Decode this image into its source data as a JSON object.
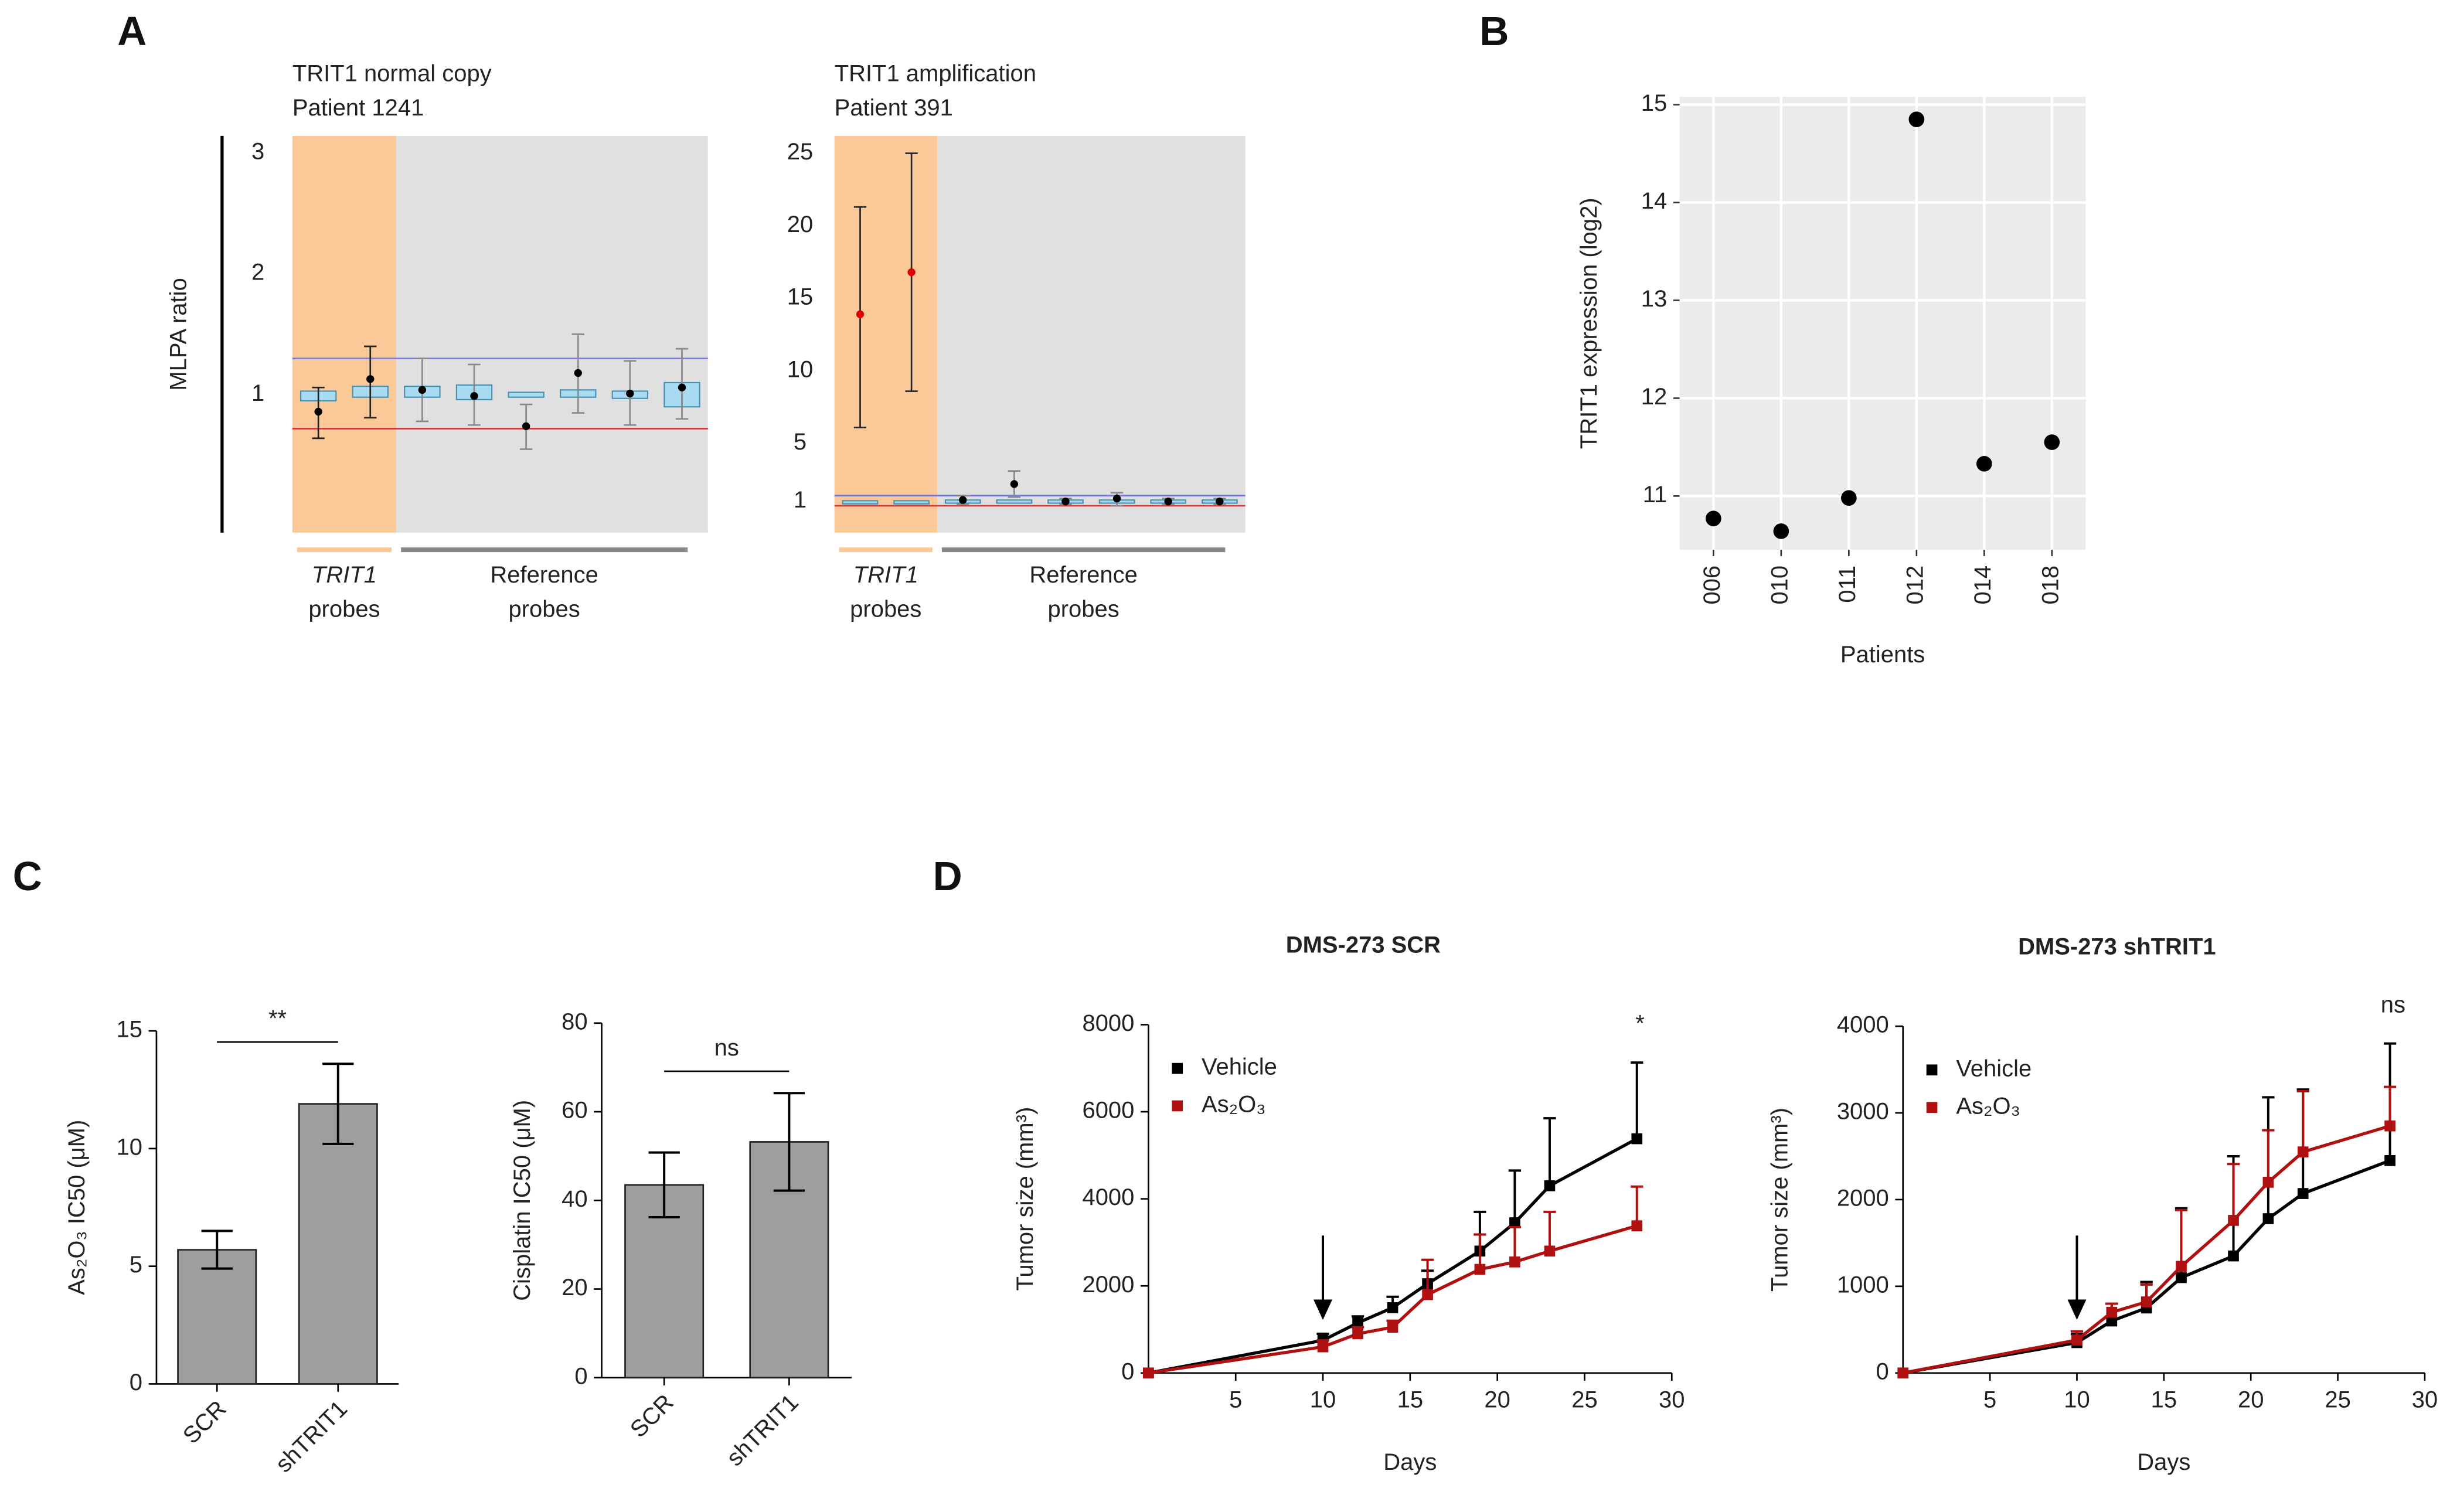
{
  "panels": [
    "A",
    "B",
    "C",
    "D"
  ],
  "chart_data": [
    {
      "type": "mlpa",
      "title": "TRIT1 normal copy",
      "subtitle": "Patient 1241",
      "ylabel": "MLPA ratio",
      "ylim": [
        -0.14,
        3.14
      ],
      "yticks": [
        1,
        2,
        3
      ],
      "highlight_count": 2,
      "groups": [
        {
          "lines": [
            "TRIT1",
            "probes"
          ],
          "italic": true
        },
        {
          "lines": [
            "Reference",
            "probes"
          ]
        }
      ],
      "upper_threshold": 1.3,
      "lower_threshold": 0.72,
      "probes": {
        "values": [
          0.86,
          1.13,
          1.04,
          0.99,
          0.74,
          1.18,
          1.01,
          1.06
        ],
        "lower": [
          0.64,
          0.81,
          0.78,
          0.75,
          0.55,
          0.85,
          0.75,
          0.8
        ],
        "upper": [
          1.06,
          1.4,
          1.3,
          1.25,
          0.92,
          1.5,
          1.28,
          1.38
        ],
        "box_low": [
          0.95,
          0.98,
          0.98,
          0.96,
          0.98,
          0.98,
          0.97,
          0.9
        ],
        "box_high": [
          1.03,
          1.07,
          1.07,
          1.08,
          1.02,
          1.04,
          1.03,
          1.1
        ]
      }
    },
    {
      "type": "mlpa",
      "title": "TRIT1 amplification",
      "subtitle": "Patient 391",
      "ylim": [
        -1.15,
        26.2
      ],
      "yticks": [
        1,
        5,
        10,
        15,
        20,
        25
      ],
      "highlight_count": 2,
      "highlight_color": "#e00000",
      "groups": [
        {
          "lines": [
            "TRIT1",
            "probes"
          ],
          "italic": true
        },
        {
          "lines": [
            "Reference",
            "probes"
          ]
        }
      ],
      "upper_threshold": 1.4,
      "lower_threshold": 0.7,
      "probes": {
        "values": [
          13.9,
          16.8,
          1.1,
          2.2,
          1.0,
          1.2,
          1.0,
          1.0
        ],
        "lower": [
          6.1,
          8.6,
          0.8,
          1.3,
          0.8,
          0.7,
          0.8,
          0.8
        ],
        "upper": [
          21.3,
          25.0,
          1.4,
          3.1,
          1.2,
          1.6,
          1.2,
          1.2
        ],
        "box_low": [
          0.95,
          0.95,
          0.9,
          0.9,
          0.9,
          0.9,
          0.9,
          0.9
        ],
        "box_high": [
          1.05,
          1.05,
          1.1,
          1.1,
          1.1,
          1.1,
          1.1,
          1.1
        ]
      }
    },
    {
      "type": "scatter",
      "xlabel": "Patients",
      "ylabel": "TRIT1 expression (log2)",
      "categories": [
        "006",
        "010",
        "011",
        "012",
        "014",
        "018"
      ],
      "values": [
        10.77,
        10.64,
        10.98,
        14.85,
        11.33,
        11.55
      ],
      "ylim": [
        10.45,
        15.08
      ],
      "yticks": [
        11,
        12,
        13,
        14,
        15
      ],
      "grid": true,
      "color": "#000000"
    },
    {
      "type": "bar",
      "ylabel": "As₂O₃ IC50 (μM)",
      "categories": [
        "SCR",
        "shTRIT1"
      ],
      "values": [
        5.7,
        11.9
      ],
      "errors": [
        0.8,
        1.7
      ],
      "ylim": [
        0,
        15
      ],
      "yticks": [
        0,
        5,
        10,
        15
      ],
      "annotation": "**",
      "color": "#9e9e9e"
    },
    {
      "type": "bar",
      "ylabel": "Cisplatin IC50 (μM)",
      "categories": [
        "SCR",
        "shTRIT1"
      ],
      "values": [
        43.5,
        53.2
      ],
      "errors": [
        7.3,
        11
      ],
      "ylim": [
        0,
        80
      ],
      "yticks": [
        0,
        20,
        40,
        60,
        80
      ],
      "annotation": "ns",
      "color": "#9e9e9e"
    },
    {
      "type": "line",
      "title": "DMS-273 SCR",
      "xlabel": "Days",
      "ylabel": "Tumor size (mm³)",
      "x": [
        0,
        10,
        12,
        14,
        16,
        19,
        21,
        23,
        28
      ],
      "series": [
        {
          "name": "Vehicle",
          "color": "#000000",
          "values": [
            0,
            750,
            1150,
            1500,
            2050,
            2800,
            3450,
            4300,
            5380
          ],
          "errors": [
            0,
            150,
            150,
            250,
            300,
            900,
            1200,
            1550,
            1750
          ]
        },
        {
          "name": "As₂O₃",
          "color": "#b01010",
          "values": [
            0,
            600,
            900,
            1050,
            1800,
            2380,
            2550,
            2800,
            3380
          ],
          "errors": [
            0,
            150,
            150,
            150,
            800,
            800,
            800,
            900,
            900
          ]
        }
      ],
      "xlim": [
        0,
        30
      ],
      "xticks": [
        5,
        10,
        15,
        20,
        25,
        30
      ],
      "ylim": [
        0,
        8000
      ],
      "yticks": [
        0,
        2000,
        4000,
        6000,
        8000
      ],
      "arrow_x": 10,
      "annotation": "*"
    },
    {
      "type": "line",
      "title": "DMS-273 shTRIT1",
      "xlabel": "Days",
      "ylabel": "Tumor size (mm³)",
      "x": [
        0,
        10,
        12,
        14,
        16,
        19,
        21,
        23,
        28
      ],
      "series": [
        {
          "name": "Vehicle",
          "color": "#000000",
          "values": [
            0,
            350,
            600,
            750,
            1100,
            1350,
            1780,
            2070,
            2450
          ],
          "errors": [
            0,
            100,
            200,
            300,
            800,
            1150,
            1400,
            1200,
            1350
          ]
        },
        {
          "name": "As₂O₃",
          "color": "#b01010",
          "values": [
            0,
            380,
            700,
            820,
            1230,
            1760,
            2200,
            2550,
            2850
          ],
          "errors": [
            0,
            100,
            100,
            200,
            650,
            650,
            600,
            700,
            450
          ]
        }
      ],
      "xlim": [
        0,
        30
      ],
      "xticks": [
        5,
        10,
        15,
        20,
        25,
        30
      ],
      "ylim": [
        0,
        4000
      ],
      "yticks": [
        0,
        1000,
        2000,
        3000,
        4000
      ],
      "arrow_x": 10,
      "annotation": "ns"
    }
  ]
}
